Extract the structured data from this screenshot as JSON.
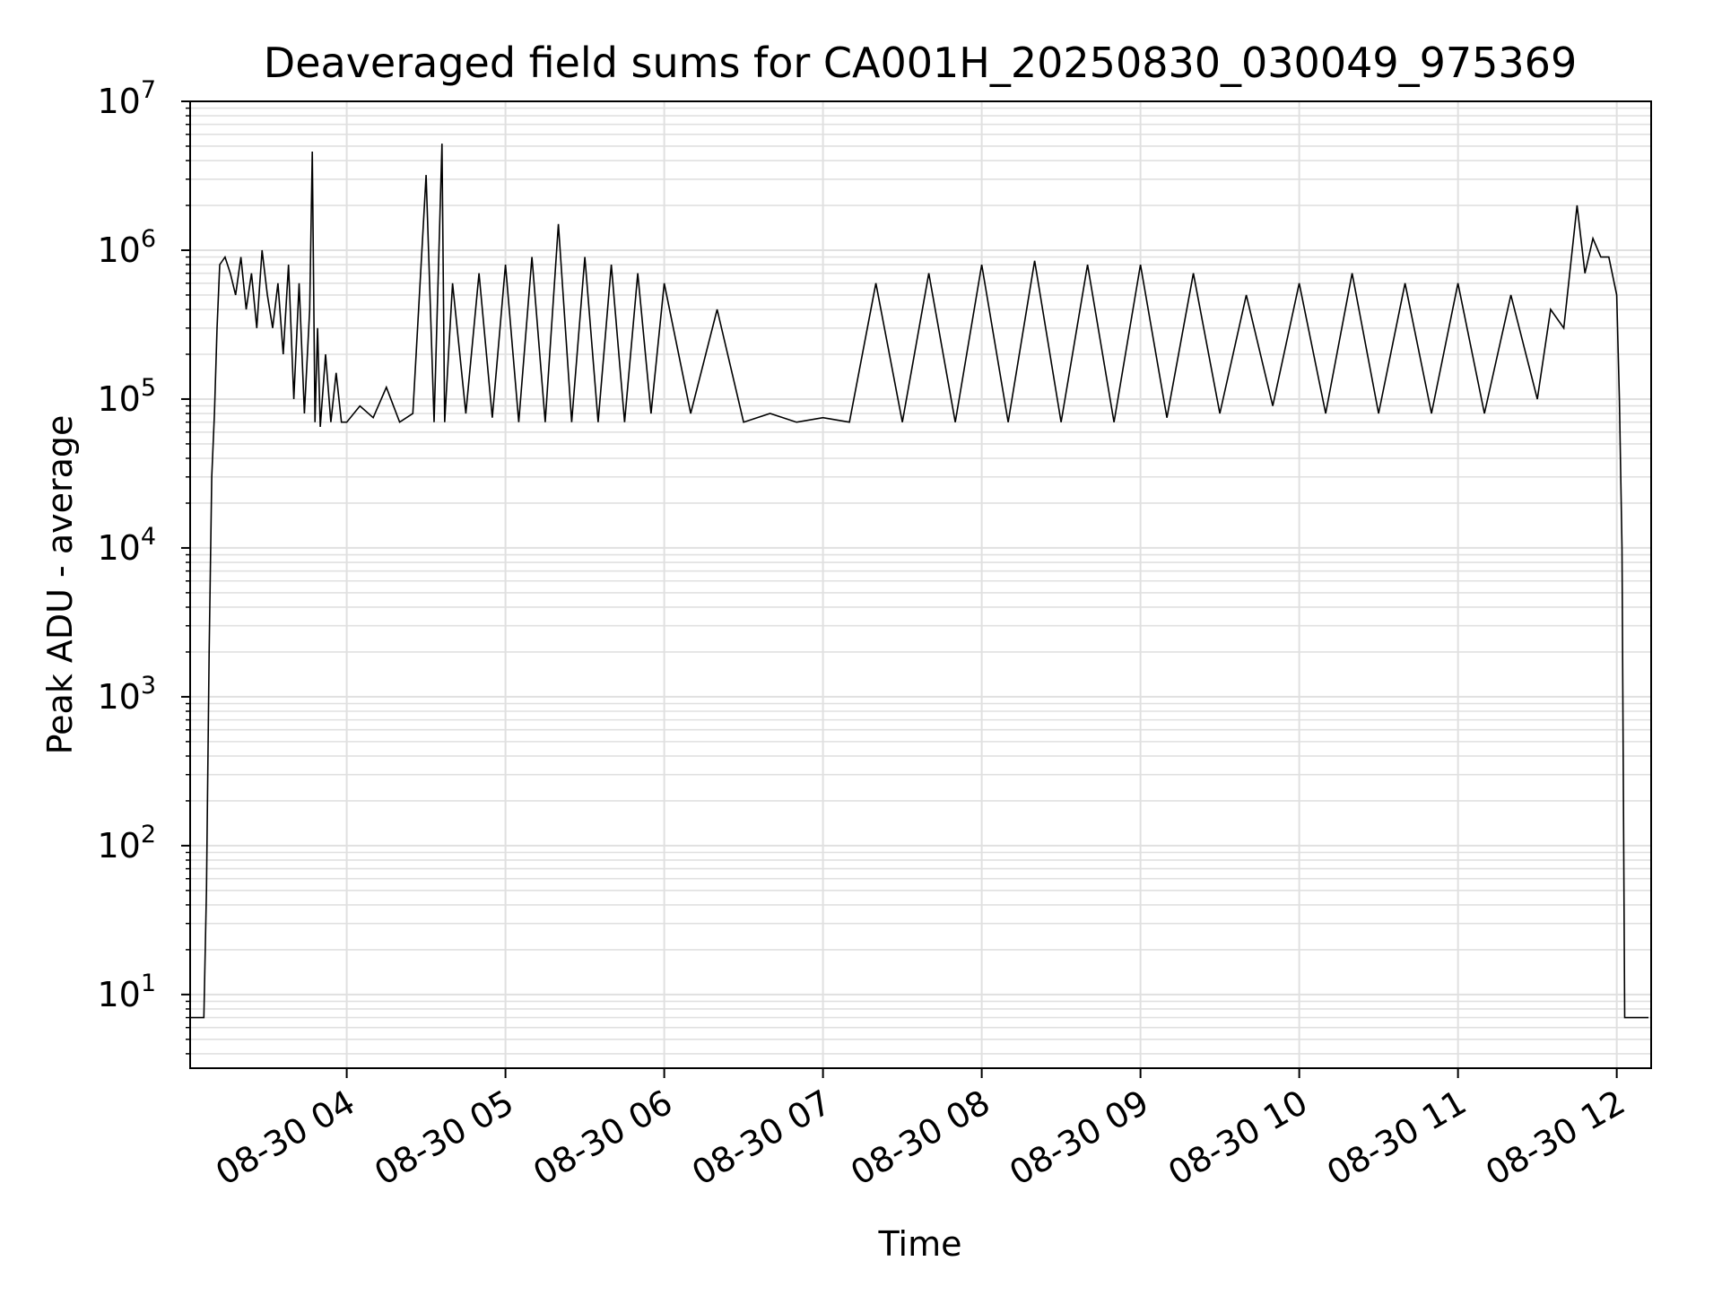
{
  "chart_data": {
    "type": "line",
    "title": "Deaveraged field sums for CA001H_20250830_030049_975369",
    "xlabel": "Time",
    "ylabel": "Peak ADU - average",
    "yscale": "log",
    "ylim": [
      3.2,
      10000000
    ],
    "xlim": [
      "2025-08-30 03:00:49",
      "2025-08-30 12:13:00"
    ],
    "grid": true,
    "minor_grid": true,
    "line_color": "#000000",
    "grid_color": "#e0e0e0",
    "x_ticks": [
      {
        "label": "08-30 04",
        "value": "2025-08-30 04:00"
      },
      {
        "label": "08-30 05",
        "value": "2025-08-30 05:00"
      },
      {
        "label": "08-30 06",
        "value": "2025-08-30 06:00"
      },
      {
        "label": "08-30 07",
        "value": "2025-08-30 07:00"
      },
      {
        "label": "08-30 08",
        "value": "2025-08-30 08:00"
      },
      {
        "label": "08-30 09",
        "value": "2025-08-30 09:00"
      },
      {
        "label": "08-30 10",
        "value": "2025-08-30 10:00"
      },
      {
        "label": "08-30 11",
        "value": "2025-08-30 11:00"
      },
      {
        "label": "08-30 12",
        "value": "2025-08-30 12:00"
      }
    ],
    "y_ticks": [
      {
        "base": "10",
        "exp": "1",
        "value": 10
      },
      {
        "base": "10",
        "exp": "2",
        "value": 100
      },
      {
        "base": "10",
        "exp": "3",
        "value": 1000
      },
      {
        "base": "10",
        "exp": "4",
        "value": 10000
      },
      {
        "base": "10",
        "exp": "5",
        "value": 100000
      },
      {
        "base": "10",
        "exp": "6",
        "value": 1000000
      },
      {
        "base": "10",
        "exp": "7",
        "value": 10000000
      }
    ],
    "series": [
      {
        "x": [
          "2025-08-30 03:01",
          "2025-08-30 03:03",
          "2025-08-30 03:05",
          "2025-08-30 03:06",
          "2025-08-30 03:07",
          "2025-08-30 03:08",
          "2025-08-30 03:09",
          "2025-08-30 03:10",
          "2025-08-30 03:11",
          "2025-08-30 03:12",
          "2025-08-30 03:14",
          "2025-08-30 03:16",
          "2025-08-30 03:18",
          "2025-08-30 03:20",
          "2025-08-30 03:22",
          "2025-08-30 03:24",
          "2025-08-30 03:26",
          "2025-08-30 03:28",
          "2025-08-30 03:30",
          "2025-08-30 03:32",
          "2025-08-30 03:34",
          "2025-08-30 03:36",
          "2025-08-30 03:38",
          "2025-08-30 03:40",
          "2025-08-30 03:42",
          "2025-08-30 03:44",
          "2025-08-30 03:46",
          "2025-08-30 03:47",
          "2025-08-30 03:48",
          "2025-08-30 03:49",
          "2025-08-30 03:50",
          "2025-08-30 03:52",
          "2025-08-30 03:54",
          "2025-08-30 03:56",
          "2025-08-30 03:58",
          "2025-08-30 04:00",
          "2025-08-30 04:05",
          "2025-08-30 04:10",
          "2025-08-30 04:15",
          "2025-08-30 04:20",
          "2025-08-30 04:25",
          "2025-08-30 04:30",
          "2025-08-30 04:33",
          "2025-08-30 04:36",
          "2025-08-30 04:37",
          "2025-08-30 04:40",
          "2025-08-30 04:45",
          "2025-08-30 04:50",
          "2025-08-30 04:55",
          "2025-08-30 05:00",
          "2025-08-30 05:05",
          "2025-08-30 05:10",
          "2025-08-30 05:15",
          "2025-08-30 05:20",
          "2025-08-30 05:25",
          "2025-08-30 05:30",
          "2025-08-30 05:35",
          "2025-08-30 05:40",
          "2025-08-30 05:45",
          "2025-08-30 05:50",
          "2025-08-30 05:55",
          "2025-08-30 06:00",
          "2025-08-30 06:10",
          "2025-08-30 06:20",
          "2025-08-30 06:30",
          "2025-08-30 06:40",
          "2025-08-30 06:50",
          "2025-08-30 07:00",
          "2025-08-30 07:10",
          "2025-08-30 07:20",
          "2025-08-30 07:30",
          "2025-08-30 07:40",
          "2025-08-30 07:50",
          "2025-08-30 08:00",
          "2025-08-30 08:10",
          "2025-08-30 08:20",
          "2025-08-30 08:30",
          "2025-08-30 08:40",
          "2025-08-30 08:50",
          "2025-08-30 09:00",
          "2025-08-30 09:10",
          "2025-08-30 09:20",
          "2025-08-30 09:30",
          "2025-08-30 09:40",
          "2025-08-30 09:50",
          "2025-08-30 10:00",
          "2025-08-30 10:10",
          "2025-08-30 10:20",
          "2025-08-30 10:30",
          "2025-08-30 10:40",
          "2025-08-30 10:50",
          "2025-08-30 11:00",
          "2025-08-30 11:10",
          "2025-08-30 11:20",
          "2025-08-30 11:30",
          "2025-08-30 11:35",
          "2025-08-30 11:40",
          "2025-08-30 11:45",
          "2025-08-30 11:48",
          "2025-08-30 11:51",
          "2025-08-30 11:54",
          "2025-08-30 11:57",
          "2025-08-30 12:00",
          "2025-08-30 12:01",
          "2025-08-30 12:02",
          "2025-08-30 12:03",
          "2025-08-30 12:05",
          "2025-08-30 12:08",
          "2025-08-30 12:12"
        ],
        "y": [
          7,
          7,
          7,
          7,
          50,
          2000,
          30000,
          80000,
          300000,
          800000,
          900000,
          700000,
          500000,
          900000,
          400000,
          700000,
          300000,
          1000000,
          500000,
          300000,
          600000,
          200000,
          800000,
          100000,
          600000,
          80000,
          400000,
          4600000,
          70000,
          300000,
          65000,
          200000,
          70000,
          150000,
          70000,
          70000,
          90000,
          75000,
          120000,
          70000,
          80000,
          3200000,
          70000,
          5200000,
          70000,
          600000,
          80000,
          700000,
          75000,
          800000,
          70000,
          900000,
          70000,
          1500000,
          70000,
          900000,
          70000,
          800000,
          70000,
          700000,
          80000,
          600000,
          80000,
          400000,
          70000,
          80000,
          70000,
          75000,
          70000,
          600000,
          70000,
          700000,
          70000,
          800000,
          70000,
          850000,
          70000,
          800000,
          70000,
          800000,
          75000,
          700000,
          80000,
          500000,
          90000,
          600000,
          80000,
          700000,
          80000,
          600000,
          80000,
          600000,
          80000,
          500000,
          100000,
          400000,
          300000,
          2000000,
          700000,
          1200000,
          900000,
          900000,
          500000,
          100000,
          10000,
          7,
          7,
          7,
          7
        ]
      }
    ]
  }
}
